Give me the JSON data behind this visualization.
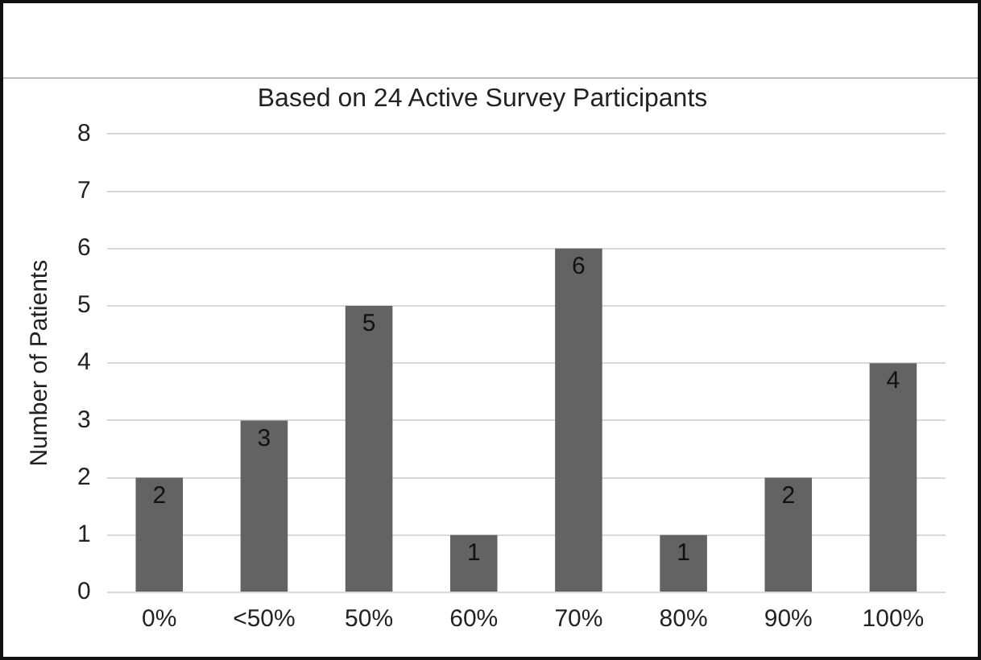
{
  "chart_data": {
    "type": "bar",
    "title": "Based on 24 Active Survey Participants",
    "ylabel": "Number of Patients",
    "categories": [
      "0%",
      "<50%",
      "50%",
      "60%",
      "70%",
      "80%",
      "90%",
      "100%"
    ],
    "values": [
      2,
      3,
      5,
      1,
      6,
      1,
      2,
      4
    ],
    "color": "#636363",
    "ylim": [
      0,
      8
    ],
    "yticks": [
      0,
      1,
      2,
      3,
      4,
      5,
      6,
      7,
      8
    ],
    "grid": "y",
    "legend": false,
    "data_labels": true
  }
}
